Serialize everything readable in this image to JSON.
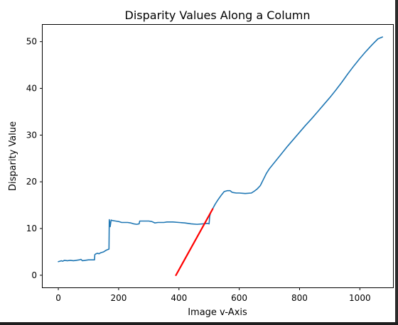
{
  "chart_data": {
    "type": "line",
    "title": "Disparity Values Along a Column",
    "xlabel": "Image v-Axis",
    "ylabel": "Disparity Value",
    "xlim": [
      -52,
      1110
    ],
    "ylim": [
      -2.6,
      53.6
    ],
    "xticks": [
      0,
      200,
      400,
      600,
      800,
      1000
    ],
    "yticks": [
      0,
      10,
      20,
      30,
      40,
      50
    ],
    "grid": false,
    "legend": "none",
    "series": [
      {
        "color": "#1f77b4",
        "points": [
          [
            0,
            2.9
          ],
          [
            5,
            3.0
          ],
          [
            10,
            3.1
          ],
          [
            15,
            3.0
          ],
          [
            20,
            3.2
          ],
          [
            30,
            3.1
          ],
          [
            40,
            3.2
          ],
          [
            50,
            3.1
          ],
          [
            60,
            3.2
          ],
          [
            70,
            3.3
          ],
          [
            75,
            3.4
          ],
          [
            80,
            3.1
          ],
          [
            90,
            3.2
          ],
          [
            100,
            3.3
          ],
          [
            110,
            3.3
          ],
          [
            120,
            3.3
          ],
          [
            121,
            4.4
          ],
          [
            125,
            4.6
          ],
          [
            130,
            4.7
          ],
          [
            135,
            4.6
          ],
          [
            140,
            4.8
          ],
          [
            150,
            5.0
          ],
          [
            160,
            5.4
          ],
          [
            168,
            5.6
          ],
          [
            169,
            11.9
          ],
          [
            172,
            10.4
          ],
          [
            175,
            11.8
          ],
          [
            180,
            11.7
          ],
          [
            190,
            11.6
          ],
          [
            200,
            11.5
          ],
          [
            210,
            11.3
          ],
          [
            220,
            11.3
          ],
          [
            230,
            11.3
          ],
          [
            240,
            11.2
          ],
          [
            250,
            11.0
          ],
          [
            260,
            10.9
          ],
          [
            268,
            11.0
          ],
          [
            270,
            11.6
          ],
          [
            280,
            11.6
          ],
          [
            290,
            11.6
          ],
          [
            300,
            11.6
          ],
          [
            310,
            11.5
          ],
          [
            320,
            11.2
          ],
          [
            330,
            11.3
          ],
          [
            340,
            11.3
          ],
          [
            350,
            11.3
          ],
          [
            360,
            11.4
          ],
          [
            380,
            11.4
          ],
          [
            400,
            11.3
          ],
          [
            420,
            11.2
          ],
          [
            440,
            11.0
          ],
          [
            460,
            10.9
          ],
          [
            480,
            11.0
          ],
          [
            495,
            11.1
          ],
          [
            500,
            11.0
          ],
          [
            502,
            12.6
          ],
          [
            505,
            13.4
          ],
          [
            510,
            14.0
          ],
          [
            520,
            15.2
          ],
          [
            530,
            16.2
          ],
          [
            540,
            17.1
          ],
          [
            550,
            17.9
          ],
          [
            560,
            18.1
          ],
          [
            570,
            18.1
          ],
          [
            575,
            17.8
          ],
          [
            580,
            17.7
          ],
          [
            590,
            17.6
          ],
          [
            600,
            17.6
          ],
          [
            620,
            17.5
          ],
          [
            640,
            17.6
          ],
          [
            650,
            18.0
          ],
          [
            660,
            18.5
          ],
          [
            670,
            19.2
          ],
          [
            680,
            20.5
          ],
          [
            690,
            21.8
          ],
          [
            700,
            22.8
          ],
          [
            720,
            24.4
          ],
          [
            740,
            26.0
          ],
          [
            760,
            27.6
          ],
          [
            780,
            29.1
          ],
          [
            800,
            30.6
          ],
          [
            820,
            32.1
          ],
          [
            840,
            33.5
          ],
          [
            860,
            35.0
          ],
          [
            880,
            36.5
          ],
          [
            900,
            38.0
          ],
          [
            920,
            39.6
          ],
          [
            940,
            41.3
          ],
          [
            960,
            43.1
          ],
          [
            980,
            44.8
          ],
          [
            1000,
            46.4
          ],
          [
            1020,
            47.9
          ],
          [
            1040,
            49.3
          ],
          [
            1060,
            50.6
          ],
          [
            1075,
            51.0
          ]
        ]
      },
      {
        "color": "#ff0000",
        "points": [
          [
            390,
            0
          ],
          [
            512,
            14.2
          ]
        ]
      }
    ]
  }
}
